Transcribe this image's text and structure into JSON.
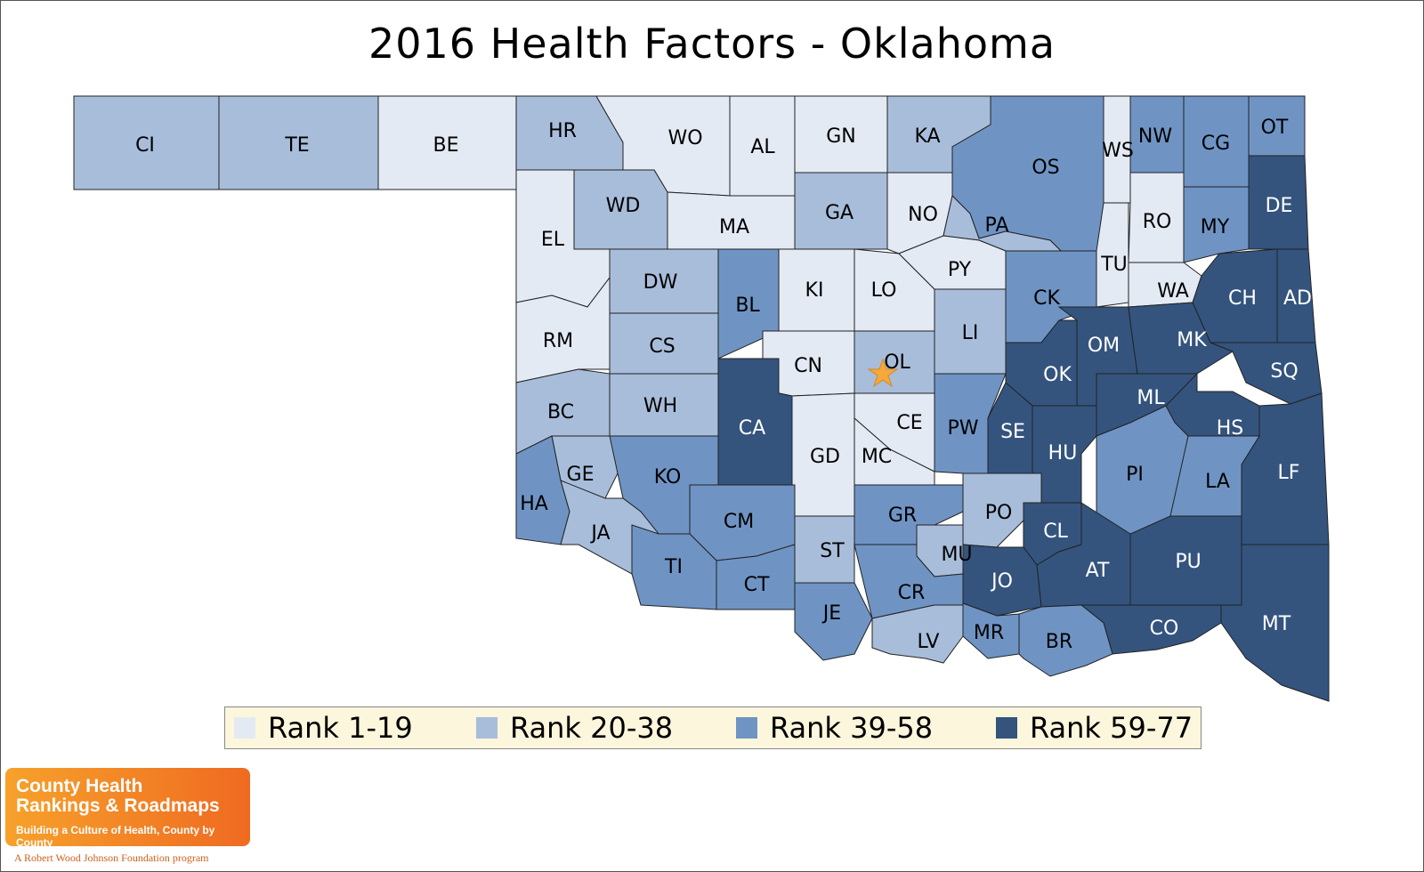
{
  "title": "2016 Health Factors - Oklahoma",
  "colors": {
    "r1": "#e3eaf4",
    "r2": "#a8bdda",
    "r3": "#6f94c4",
    "r4": "#34547e",
    "star": "#f6a83a"
  },
  "legend": [
    {
      "label": "Rank 1-19",
      "color": "#e3eaf4"
    },
    {
      "label": "Rank 20-38",
      "color": "#a8bdda"
    },
    {
      "label": "Rank 39-58",
      "color": "#6f94c4"
    },
    {
      "label": "Rank 59-77",
      "color": "#34547e"
    }
  ],
  "counties": [
    {
      "code": "CI",
      "rank_band": 2
    },
    {
      "code": "TE",
      "rank_band": 2
    },
    {
      "code": "BE",
      "rank_band": 1
    },
    {
      "code": "HR",
      "rank_band": 2
    },
    {
      "code": "WO",
      "rank_band": 1
    },
    {
      "code": "AL",
      "rank_band": 1
    },
    {
      "code": "GN",
      "rank_band": 1
    },
    {
      "code": "KA",
      "rank_band": 2
    },
    {
      "code": "OS",
      "rank_band": 3
    },
    {
      "code": "WS",
      "rank_band": 1
    },
    {
      "code": "NW",
      "rank_band": 3
    },
    {
      "code": "CG",
      "rank_band": 3
    },
    {
      "code": "OT",
      "rank_band": 3
    },
    {
      "code": "EL",
      "rank_band": 1
    },
    {
      "code": "WD",
      "rank_band": 2
    },
    {
      "code": "MA",
      "rank_band": 1
    },
    {
      "code": "GA",
      "rank_band": 2
    },
    {
      "code": "NO",
      "rank_band": 1
    },
    {
      "code": "PA",
      "rank_band": 2
    },
    {
      "code": "RO",
      "rank_band": 1
    },
    {
      "code": "MY",
      "rank_band": 3
    },
    {
      "code": "DE",
      "rank_band": 4
    },
    {
      "code": "DW",
      "rank_band": 2
    },
    {
      "code": "BL",
      "rank_band": 3
    },
    {
      "code": "KI",
      "rank_band": 1
    },
    {
      "code": "LO",
      "rank_band": 1
    },
    {
      "code": "PY",
      "rank_band": 1
    },
    {
      "code": "TU",
      "rank_band": 1
    },
    {
      "code": "WA",
      "rank_band": 1
    },
    {
      "code": "CH",
      "rank_band": 4
    },
    {
      "code": "AD",
      "rank_band": 4
    },
    {
      "code": "RM",
      "rank_band": 1
    },
    {
      "code": "CS",
      "rank_band": 2
    },
    {
      "code": "CK",
      "rank_band": 3
    },
    {
      "code": "LI",
      "rank_band": 2
    },
    {
      "code": "OM",
      "rank_band": 4
    },
    {
      "code": "MK",
      "rank_band": 4
    },
    {
      "code": "CN",
      "rank_band": 1
    },
    {
      "code": "OL",
      "rank_band": 2
    },
    {
      "code": "OK",
      "rank_band": 4
    },
    {
      "code": "SQ",
      "rank_band": 4
    },
    {
      "code": "BC",
      "rank_band": 2
    },
    {
      "code": "WH",
      "rank_band": 2
    },
    {
      "code": "CA",
      "rank_band": 4
    },
    {
      "code": "ML",
      "rank_band": 4
    },
    {
      "code": "CE",
      "rank_band": 1
    },
    {
      "code": "PW",
      "rank_band": 3
    },
    {
      "code": "SE",
      "rank_band": 4
    },
    {
      "code": "HS",
      "rank_band": 4
    },
    {
      "code": "GE",
      "rank_band": 2
    },
    {
      "code": "KO",
      "rank_band": 3
    },
    {
      "code": "GD",
      "rank_band": 1
    },
    {
      "code": "MC",
      "rank_band": 1
    },
    {
      "code": "HU",
      "rank_band": 4
    },
    {
      "code": "PI",
      "rank_band": 3
    },
    {
      "code": "LF",
      "rank_band": 4
    },
    {
      "code": "HA",
      "rank_band": 3
    },
    {
      "code": "LA",
      "rank_band": 3
    },
    {
      "code": "JA",
      "rank_band": 2
    },
    {
      "code": "CM",
      "rank_band": 3
    },
    {
      "code": "GR",
      "rank_band": 3
    },
    {
      "code": "PO",
      "rank_band": 2
    },
    {
      "code": "CL",
      "rank_band": 4
    },
    {
      "code": "ST",
      "rank_band": 2
    },
    {
      "code": "MU",
      "rank_band": 2
    },
    {
      "code": "TI",
      "rank_band": 3
    },
    {
      "code": "AT",
      "rank_band": 4
    },
    {
      "code": "PU",
      "rank_band": 4
    },
    {
      "code": "CT",
      "rank_band": 3
    },
    {
      "code": "JO",
      "rank_band": 4
    },
    {
      "code": "CR",
      "rank_band": 3
    },
    {
      "code": "MT",
      "rank_band": 4
    },
    {
      "code": "JE",
      "rank_band": 3
    },
    {
      "code": "CO",
      "rank_band": 4
    },
    {
      "code": "MR",
      "rank_band": 3
    },
    {
      "code": "LV",
      "rank_band": 2
    },
    {
      "code": "BR",
      "rank_band": 3
    }
  ],
  "capital_icon": "star-icon",
  "logo": {
    "line1": "County Health",
    "line2": "Rankings & Roadmaps",
    "line3": "Building a Culture of Health, County by County",
    "footer": "A Robert Wood Johnson Foundation program"
  }
}
